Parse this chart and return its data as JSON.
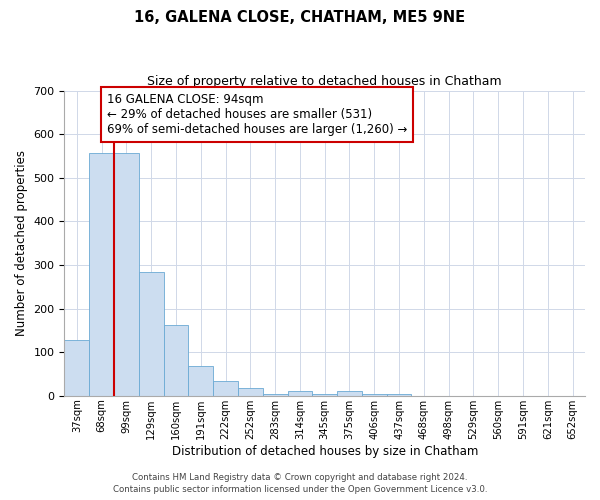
{
  "title": "16, GALENA CLOSE, CHATHAM, ME5 9NE",
  "subtitle": "Size of property relative to detached houses in Chatham",
  "xlabel": "Distribution of detached houses by size in Chatham",
  "ylabel": "Number of detached properties",
  "bar_labels": [
    "37sqm",
    "68sqm",
    "99sqm",
    "129sqm",
    "160sqm",
    "191sqm",
    "222sqm",
    "252sqm",
    "283sqm",
    "314sqm",
    "345sqm",
    "375sqm",
    "406sqm",
    "437sqm",
    "468sqm",
    "498sqm",
    "529sqm",
    "560sqm",
    "591sqm",
    "621sqm",
    "652sqm"
  ],
  "bar_values": [
    128,
    556,
    556,
    285,
    163,
    68,
    33,
    19,
    5,
    10,
    5,
    10,
    5,
    5,
    0,
    0,
    0,
    0,
    0,
    0,
    0
  ],
  "bar_color": "#ccddf0",
  "bar_edge_color": "#6aaad4",
  "vline_color": "#cc0000",
  "vline_pos": 1.5,
  "ylim": [
    0,
    700
  ],
  "yticks": [
    0,
    100,
    200,
    300,
    400,
    500,
    600,
    700
  ],
  "annotation_text": "16 GALENA CLOSE: 94sqm\n← 29% of detached houses are smaller (531)\n69% of semi-detached houses are larger (1,260) →",
  "annotation_box_color": "#ffffff",
  "annotation_box_edge": "#cc0000",
  "footer_line1": "Contains HM Land Registry data © Crown copyright and database right 2024.",
  "footer_line2": "Contains public sector information licensed under the Open Government Licence v3.0.",
  "background_color": "#ffffff",
  "grid_color": "#d0d8e8"
}
